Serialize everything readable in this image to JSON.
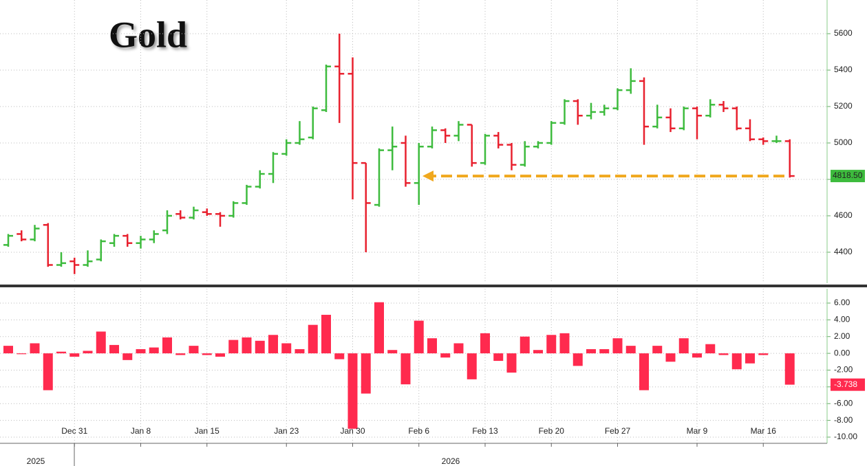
{
  "chart_data": [
    {
      "type": "ohlc",
      "title": "Gold",
      "categories": [
        null,
        null,
        null,
        null,
        null,
        "Dec 31",
        null,
        null,
        null,
        null,
        "Jan 8",
        null,
        null,
        null,
        null,
        "Jan 15",
        null,
        null,
        null,
        null,
        null,
        "Jan 23",
        null,
        null,
        null,
        null,
        "Jan 30",
        null,
        null,
        null,
        null,
        "Feb 6",
        null,
        null,
        null,
        null,
        "Feb 13",
        null,
        null,
        null,
        null,
        "Feb 20",
        null,
        null,
        null,
        null,
        "Feb 27",
        null,
        null,
        null,
        null,
        null,
        "Mar 9",
        null,
        null,
        null,
        null,
        "Mar 16",
        null,
        null
      ],
      "year_labels": [
        "2025",
        "2026"
      ],
      "open": [
        4440,
        4500,
        4470,
        4550,
        4330,
        4350,
        4330,
        4360,
        4450,
        4490,
        4450,
        4470,
        4520,
        4610,
        4590,
        4620,
        4610,
        4600,
        4670,
        4760,
        4830,
        4940,
        5000,
        5030,
        5180,
        5420,
        5380,
        4890,
        4660,
        4960,
        5000,
        4780,
        4980,
        5070,
        5040,
        5100,
        4890,
        5040,
        4990,
        4880,
        4980,
        5000,
        5110,
        5230,
        5150,
        5170,
        5190,
        5290,
        5340,
        5090,
        5140,
        5080,
        5190,
        5150,
        5210,
        5190,
        5080,
        5020,
        5010,
        5010
      ],
      "high": [
        4500,
        4520,
        4550,
        4560,
        4400,
        4370,
        4410,
        4470,
        4500,
        4500,
        4490,
        4520,
        4630,
        4630,
        4650,
        4640,
        4620,
        4680,
        4770,
        4850,
        4950,
        5020,
        5120,
        5200,
        5430,
        5600,
        5470,
        4890,
        4970,
        5090,
        5040,
        5000,
        5090,
        5080,
        5120,
        5100,
        5050,
        5060,
        5000,
        5010,
        5010,
        5120,
        5240,
        5240,
        5220,
        5210,
        5300,
        5410,
        5360,
        5210,
        5190,
        5200,
        5200,
        5240,
        5230,
        5200,
        5130,
        5030,
        5040,
        5020
      ],
      "low": [
        4430,
        4460,
        4460,
        4320,
        4320,
        4280,
        4320,
        4350,
        4430,
        4430,
        4420,
        4450,
        4500,
        4580,
        4580,
        4600,
        4540,
        4590,
        4660,
        4750,
        4780,
        4930,
        4990,
        5020,
        5170,
        5110,
        4690,
        4400,
        4650,
        4850,
        4760,
        4660,
        4970,
        5000,
        5010,
        4870,
        4880,
        4970,
        4850,
        4870,
        4970,
        4990,
        5100,
        5100,
        5130,
        5150,
        5180,
        5270,
        4990,
        5080,
        5060,
        5070,
        5020,
        5140,
        5170,
        5070,
        5010,
        4990,
        5000,
        4810
      ],
      "close": [
        4490,
        4470,
        4530,
        4330,
        4340,
        4330,
        4350,
        4460,
        4490,
        4450,
        4470,
        4500,
        4600,
        4590,
        4630,
        4610,
        4600,
        4670,
        4760,
        4830,
        4940,
        5000,
        5020,
        5190,
        5420,
        5380,
        4890,
        4670,
        4960,
        4980,
        4780,
        4980,
        5070,
        5040,
        5100,
        4890,
        5040,
        4990,
        4880,
        4980,
        5000,
        5110,
        5230,
        5150,
        5170,
        5190,
        5290,
        5340,
        5090,
        5140,
        5080,
        5190,
        5150,
        5210,
        5190,
        5080,
        5020,
        5010,
        5010,
        4818.5
      ],
      "up_color": "#3dbb3d",
      "down_color": "#e8202e",
      "last_tag": {
        "value": 4818.5,
        "label": "4818.50"
      },
      "ylim": [
        4230,
        5785
      ],
      "yticks": [
        4400,
        4600,
        4800,
        5000,
        5200,
        5400,
        5600
      ],
      "grid": true
    },
    {
      "type": "bar",
      "values": [
        0.9,
        -0.1,
        1.2,
        -4.4,
        0.2,
        -0.4,
        0.3,
        2.6,
        1.0,
        -0.8,
        0.5,
        0.7,
        1.9,
        -0.2,
        0.9,
        -0.2,
        -0.4,
        1.6,
        1.9,
        1.5,
        2.2,
        1.2,
        0.5,
        3.4,
        4.6,
        -0.7,
        -9.0,
        -4.8,
        6.1,
        0.4,
        -3.7,
        3.9,
        1.8,
        -0.5,
        1.2,
        -3.1,
        2.4,
        -0.9,
        -2.3,
        2.0,
        0.4,
        2.2,
        2.4,
        -1.5,
        0.5,
        0.5,
        1.8,
        0.9,
        -4.4,
        0.9,
        -1.0,
        1.8,
        -0.5,
        1.1,
        -0.2,
        -1.9,
        -1.2,
        -0.2,
        0,
        -3.738
      ],
      "color": "#ff2a4e",
      "last_tag": -3.738,
      "ylim": [
        -10.74,
        7.72
      ],
      "yticks": [
        {
          "value": -10,
          "label": "-10.00"
        },
        {
          "value": -8,
          "label": "-8.00"
        },
        {
          "value": -6,
          "label": "-6.00"
        },
        {
          "value": -4,
          "label": "-4.00"
        },
        {
          "value": -2,
          "label": "-2.00"
        },
        {
          "value": 0,
          "label": "0.00"
        },
        {
          "value": 2,
          "label": "2.00"
        },
        {
          "value": 4,
          "label": "4.00"
        },
        {
          "value": 6,
          "label": "6.00"
        }
      ],
      "grid": true
    }
  ]
}
